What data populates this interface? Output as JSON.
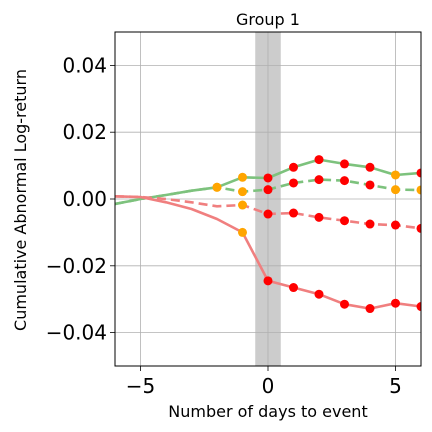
{
  "chart_data": {
    "type": "line",
    "title": "Group 1",
    "xlabel": "Number of days to event",
    "ylabel": "Cumulative Abnormal Log-return",
    "xlim": [
      -6,
      6
    ],
    "ylim": [
      -0.05,
      0.05
    ],
    "x_ticks": [
      -5,
      0,
      5
    ],
    "x_tick_labels": [
      "−5",
      "0",
      "5"
    ],
    "y_ticks": [
      0.04,
      0.02,
      0.0,
      -0.02,
      -0.04
    ],
    "y_tick_labels": [
      "0.04",
      "0.02",
      "0.00",
      "−0.02",
      "−0.04"
    ],
    "grid": true,
    "event_window": [
      -0.5,
      0.5
    ],
    "event_window_color": "#cccccc",
    "series": [
      {
        "color": "#7dc27d",
        "dashed": false,
        "x": [
          -6,
          -5,
          -4,
          -3,
          -2,
          -1,
          0,
          1,
          2,
          3,
          4,
          5,
          6
        ],
        "y": [
          -0.0015,
          0.0,
          0.0012,
          0.0025,
          0.0035,
          0.0065,
          0.0063,
          0.0095,
          0.0118,
          0.0105,
          0.0095,
          0.0072,
          0.0078
        ],
        "markers_x": [
          -2,
          -1,
          0,
          1,
          2,
          3,
          4,
          5,
          6
        ],
        "marker_colors": [
          "#ffa500",
          "#ffa500",
          "#ff0000",
          "#ff0000",
          "#ff0000",
          "#ff0000",
          "#ff0000",
          "#ffa500",
          "#ff0000"
        ]
      },
      {
        "color": "#7dc27d",
        "dashed": true,
        "x": [
          -6,
          -5,
          -4,
          -3,
          -2,
          -1,
          0,
          1,
          2,
          3,
          4,
          5,
          6
        ],
        "y": [
          -0.0015,
          0.0,
          0.0012,
          0.0025,
          0.0035,
          0.0022,
          0.0028,
          0.0048,
          0.0058,
          0.0055,
          0.0042,
          0.0028,
          0.0027
        ],
        "markers_x": [
          -2,
          -1,
          0,
          1,
          2,
          3,
          4,
          5,
          6
        ],
        "marker_colors": [
          "#ffa500",
          "#ffa500",
          "#ff0000",
          "#ff0000",
          "#ff0000",
          "#ff0000",
          "#ff0000",
          "#ffa500",
          "#ffa500"
        ]
      },
      {
        "color": "#f07f7f",
        "dashed": true,
        "x": [
          -6,
          -5,
          -4,
          -3,
          -2,
          -1,
          0,
          1,
          2,
          3,
          4,
          5,
          6
        ],
        "y": [
          0.0008,
          0.0006,
          0.0,
          -0.001,
          -0.0022,
          -0.0018,
          -0.0045,
          -0.0042,
          -0.0055,
          -0.0065,
          -0.0075,
          -0.0078,
          -0.0088
        ],
        "markers_x": [
          -1,
          0,
          1,
          2,
          3,
          4,
          5,
          6
        ],
        "marker_colors": [
          "#ffa500",
          "#ff0000",
          "#ff0000",
          "#ff0000",
          "#ff0000",
          "#ff0000",
          "#ff0000",
          "#ff0000"
        ]
      },
      {
        "color": "#f07f7f",
        "dashed": false,
        "x": [
          -6,
          -5,
          -4,
          -3,
          -2,
          -1,
          0,
          1,
          2,
          3,
          4,
          5,
          6
        ],
        "y": [
          0.0008,
          0.0006,
          -0.001,
          -0.003,
          -0.006,
          -0.01,
          -0.0245,
          -0.0265,
          -0.0285,
          -0.0315,
          -0.0328,
          -0.0312,
          -0.0322
        ],
        "markers_x": [
          -1,
          0,
          1,
          2,
          3,
          4,
          5,
          6
        ],
        "marker_colors": [
          "#ffa500",
          "#ff0000",
          "#ff0000",
          "#ff0000",
          "#ff0000",
          "#ff0000",
          "#ff0000",
          "#ff0000"
        ]
      }
    ]
  }
}
